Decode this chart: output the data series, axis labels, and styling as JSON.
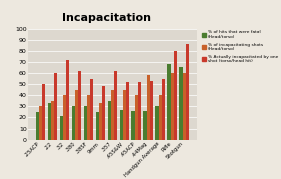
{
  "title": "Incapacitation",
  "categories": [
    ".25ACP",
    ".22",
    ".32",
    ".380",
    ".38SF",
    "9mm",
    ".357",
    ".45S&W",
    ".45ACP",
    ".44Mag",
    "Handgun Average",
    "Rifle",
    "Shotgun"
  ],
  "fatal_head_torso": [
    25,
    33,
    21,
    30,
    30,
    25,
    35,
    27,
    26,
    26,
    30,
    68,
    65
  ],
  "incapacitating_shots": [
    30,
    35,
    40,
    45,
    40,
    33,
    45,
    45,
    40,
    58,
    40,
    60,
    60
  ],
  "one_shot_incapacitation": [
    50,
    60,
    72,
    62,
    55,
    48,
    62,
    52,
    52,
    53,
    55,
    80,
    86
  ],
  "color_fatal": "#4a7c2f",
  "color_incapacitating": "#c8612a",
  "color_one_shot": "#c8392b",
  "ylim": [
    0,
    100
  ],
  "yticks": [
    0,
    10,
    20,
    30,
    40,
    50,
    60,
    70,
    80,
    90,
    100
  ],
  "legend_labels": [
    "% of hits that were fatal\n(Head/torso)",
    "% of incapacitating shots\n(Head/torso)",
    "% Actually incapacitated by one\nshot (torso/head hit)"
  ],
  "background_color": "#ede8df",
  "plot_area_color": "#ddd8cf"
}
